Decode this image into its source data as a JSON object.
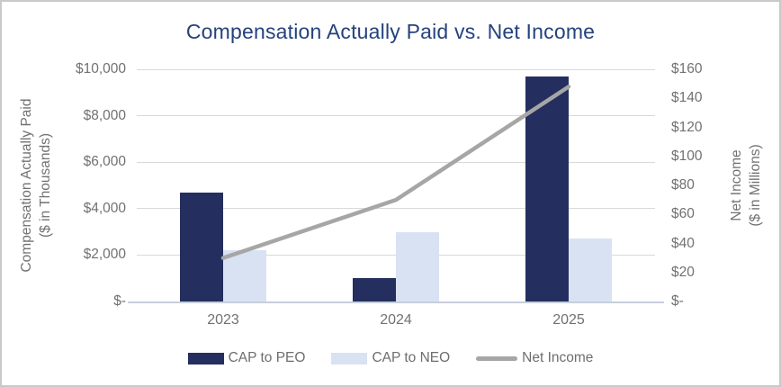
{
  "title": "Compensation Actually Paid vs. Net Income",
  "chart_data": {
    "type": "bar",
    "subtype": "grouped-bar-with-line-combo",
    "title": "Compensation Actually Paid vs. Net Income",
    "categories": [
      "2023",
      "2024",
      "2025"
    ],
    "series": [
      {
        "name": "CAP to PEO",
        "type": "bar",
        "axis": "left",
        "color": "#242e5f",
        "values": [
          4700,
          1000,
          9700
        ]
      },
      {
        "name": "CAP to NEO",
        "type": "bar",
        "axis": "left",
        "color": "#d9e2f3",
        "values": [
          2200,
          3000,
          2700
        ]
      },
      {
        "name": "Net Income",
        "type": "line",
        "axis": "right",
        "color": "#a6a6a6",
        "values": [
          30,
          70,
          148
        ]
      }
    ],
    "left_axis": {
      "label_line1": "Compensation Actually Paid",
      "label_line2": "($ in Thousands)",
      "min": 0,
      "max": 10000,
      "step": 2000,
      "ticks": [
        "$10,000",
        "$8,000",
        "$6,000",
        "$4,000",
        "$2,000",
        "$-"
      ]
    },
    "right_axis": {
      "label_line1": "Net Income",
      "label_line2": "($ in Millions)",
      "min": 0,
      "max": 160,
      "step": 20,
      "ticks": [
        "$160",
        "$140",
        "$120",
        "$100",
        "$80",
        "$60",
        "$40",
        "$20",
        "$-"
      ]
    },
    "grid": true,
    "legend_position": "bottom",
    "colors": {
      "title_text": "#25427d",
      "tick_text": "#717171",
      "gridline": "#d9d9d9",
      "axis_line": "#c7cedb"
    }
  }
}
